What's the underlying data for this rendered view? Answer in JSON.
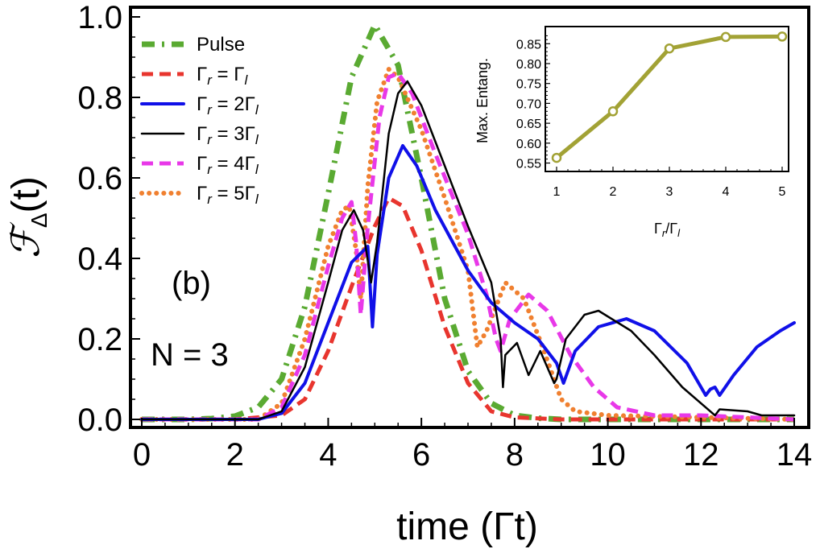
{
  "chart_data": [
    {
      "type": "line",
      "panel_label": "(b)",
      "annotation": "N = 3",
      "xlabel": "time (Γt)",
      "ylabel_symbol": "ℱ",
      "ylabel_sub": "Δ",
      "ylabel_arg": "(t)",
      "xlim": [
        0,
        14
      ],
      "ylim": [
        0,
        1.0
      ],
      "x_ticks": [
        "0",
        "2",
        "4",
        "6",
        "8",
        "10",
        "12",
        "14"
      ],
      "y_ticks": [
        "0.0",
        "0.2",
        "0.4",
        "0.6",
        "0.8",
        "1.0"
      ],
      "legend_position": "top-left",
      "series": [
        {
          "name": "Pulse",
          "key": "pulse",
          "color": "#5aaa32",
          "style": "dashdot",
          "legend": {
            "main": "Pulse",
            "num": ""
          },
          "points": [
            [
              0,
              0
            ],
            [
              1,
              0
            ],
            [
              1.5,
              0.002
            ],
            [
              2,
              0.008
            ],
            [
              2.5,
              0.03
            ],
            [
              3,
              0.1
            ],
            [
              3.5,
              0.28
            ],
            [
              4,
              0.56
            ],
            [
              4.5,
              0.85
            ],
            [
              5,
              0.98
            ],
            [
              5.5,
              0.88
            ],
            [
              6,
              0.6
            ],
            [
              6.5,
              0.3
            ],
            [
              7,
              0.12
            ],
            [
              7.5,
              0.04
            ],
            [
              8,
              0.01
            ],
            [
              8.5,
              0.003
            ],
            [
              9,
              0
            ],
            [
              14,
              0
            ]
          ]
        },
        {
          "name": "Γr = Γl",
          "key": "r1",
          "color": "#e8352e",
          "style": "dashed",
          "legend": {
            "main": "Γ",
            "num": ""
          },
          "points": [
            [
              0,
              0
            ],
            [
              2,
              0
            ],
            [
              3,
              0.01
            ],
            [
              3.5,
              0.05
            ],
            [
              4,
              0.17
            ],
            [
              4.5,
              0.33
            ],
            [
              5,
              0.48
            ],
            [
              5.3,
              0.55
            ],
            [
              5.6,
              0.53
            ],
            [
              6,
              0.42
            ],
            [
              6.5,
              0.23
            ],
            [
              7,
              0.09
            ],
            [
              7.5,
              0.02
            ],
            [
              8,
              0.005
            ],
            [
              9,
              0
            ],
            [
              14,
              0
            ]
          ]
        },
        {
          "name": "Γr = 2Γl",
          "key": "r2",
          "color": "#1010e8",
          "style": "solid-thick",
          "legend": {
            "main": "Γ",
            "num": "2"
          },
          "points": [
            [
              0,
              0
            ],
            [
              2.5,
              0
            ],
            [
              3,
              0.015
            ],
            [
              3.5,
              0.09
            ],
            [
              4,
              0.24
            ],
            [
              4.5,
              0.39
            ],
            [
              4.85,
              0.43
            ],
            [
              4.95,
              0.23
            ],
            [
              5.05,
              0.41
            ],
            [
              5.3,
              0.6
            ],
            [
              5.6,
              0.68
            ],
            [
              5.9,
              0.63
            ],
            [
              6.3,
              0.52
            ],
            [
              7,
              0.37
            ],
            [
              7.5,
              0.29
            ],
            [
              8,
              0.24
            ],
            [
              8.5,
              0.2
            ],
            [
              8.9,
              0.14
            ],
            [
              9.05,
              0.09
            ],
            [
              9.3,
              0.17
            ],
            [
              9.8,
              0.23
            ],
            [
              10.4,
              0.25
            ],
            [
              11,
              0.22
            ],
            [
              11.7,
              0.14
            ],
            [
              12.1,
              0.06
            ],
            [
              12.2,
              0.075
            ],
            [
              12.3,
              0.08
            ],
            [
              12.4,
              0.06
            ],
            [
              12.7,
              0.11
            ],
            [
              13.2,
              0.18
            ],
            [
              13.7,
              0.22
            ],
            [
              14,
              0.24
            ]
          ]
        },
        {
          "name": "Γr = 3Γl",
          "key": "r3",
          "color": "#000000",
          "style": "solid",
          "legend": {
            "main": "Γ",
            "num": "3"
          },
          "points": [
            [
              0,
              0
            ],
            [
              2.5,
              0
            ],
            [
              3,
              0.02
            ],
            [
              3.5,
              0.13
            ],
            [
              4,
              0.34
            ],
            [
              4.3,
              0.47
            ],
            [
              4.55,
              0.52
            ],
            [
              4.75,
              0.47
            ],
            [
              4.92,
              0.34
            ],
            [
              5.05,
              0.44
            ],
            [
              5.3,
              0.71
            ],
            [
              5.5,
              0.81
            ],
            [
              5.7,
              0.84
            ],
            [
              6,
              0.78
            ],
            [
              6.5,
              0.63
            ],
            [
              7,
              0.48
            ],
            [
              7.5,
              0.34
            ],
            [
              7.7,
              0.2
            ],
            [
              7.75,
              0.08
            ],
            [
              7.8,
              0.16
            ],
            [
              8.05,
              0.19
            ],
            [
              8.3,
              0.11
            ],
            [
              8.55,
              0.17
            ],
            [
              8.85,
              0.09
            ],
            [
              8.9,
              0.1
            ],
            [
              9.1,
              0.2
            ],
            [
              9.5,
              0.26
            ],
            [
              9.8,
              0.27
            ],
            [
              10.5,
              0.22
            ],
            [
              11,
              0.16
            ],
            [
              11.6,
              0.08
            ],
            [
              12.3,
              0.01
            ],
            [
              12.4,
              0.025
            ],
            [
              13,
              0.02
            ],
            [
              13.3,
              0.01
            ],
            [
              13.6,
              0.01
            ],
            [
              14,
              0.01
            ]
          ]
        },
        {
          "name": "Γr = 4Γl",
          "key": "r4",
          "color": "#e838e8",
          "style": "dashed",
          "legend": {
            "main": "Γ",
            "num": "4"
          },
          "points": [
            [
              0,
              0
            ],
            [
              2.5,
              0
            ],
            [
              3,
              0.03
            ],
            [
              3.5,
              0.16
            ],
            [
              4,
              0.38
            ],
            [
              4.3,
              0.5
            ],
            [
              4.5,
              0.54
            ],
            [
              4.6,
              0.44
            ],
            [
              4.7,
              0.26
            ],
            [
              4.85,
              0.48
            ],
            [
              5.1,
              0.75
            ],
            [
              5.3,
              0.85
            ],
            [
              5.5,
              0.86
            ],
            [
              5.8,
              0.81
            ],
            [
              6.3,
              0.66
            ],
            [
              7,
              0.46
            ],
            [
              7.4,
              0.31
            ],
            [
              7.6,
              0.2
            ],
            [
              7.7,
              0.17
            ],
            [
              7.9,
              0.25
            ],
            [
              8.3,
              0.31
            ],
            [
              8.7,
              0.27
            ],
            [
              9.2,
              0.16
            ],
            [
              9.7,
              0.08
            ],
            [
              10.2,
              0.03
            ],
            [
              11,
              0.01
            ],
            [
              12,
              0.01
            ],
            [
              14,
              0
            ]
          ]
        },
        {
          "name": "Γr = 5Γl",
          "key": "r5",
          "color": "#f08030",
          "style": "dotted",
          "legend": {
            "main": "Γ",
            "num": "5"
          },
          "points": [
            [
              0,
              0
            ],
            [
              2.5,
              0
            ],
            [
              3,
              0.04
            ],
            [
              3.5,
              0.2
            ],
            [
              4,
              0.43
            ],
            [
              4.3,
              0.52
            ],
            [
              4.45,
              0.53
            ],
            [
              4.6,
              0.42
            ],
            [
              4.7,
              0.3
            ],
            [
              4.85,
              0.58
            ],
            [
              5.05,
              0.79
            ],
            [
              5.3,
              0.87
            ],
            [
              5.5,
              0.85
            ],
            [
              6,
              0.72
            ],
            [
              6.5,
              0.55
            ],
            [
              7,
              0.37
            ],
            [
              7.2,
              0.18
            ],
            [
              7.4,
              0.22
            ],
            [
              7.8,
              0.34
            ],
            [
              8.2,
              0.3
            ],
            [
              8.6,
              0.18
            ],
            [
              9,
              0.05
            ],
            [
              9.3,
              0.02
            ],
            [
              10,
              0.01
            ],
            [
              14,
              0
            ]
          ]
        }
      ]
    },
    {
      "type": "line",
      "inset": true,
      "xlabel": "Γr/Γl",
      "ylabel": "Max. Entang.",
      "xlim": [
        1,
        5
      ],
      "ylim": [
        0.545,
        0.885
      ],
      "x_ticks": [
        "1",
        "2",
        "3",
        "4",
        "5"
      ],
      "y_ticks": [
        "0.55",
        "0.60",
        "0.65",
        "0.70",
        "0.75",
        "0.80",
        "0.85"
      ],
      "color": "#a2a235",
      "x": [
        1,
        2,
        3,
        4,
        5
      ],
      "values": [
        0.563,
        0.68,
        0.838,
        0.867,
        0.868
      ]
    }
  ]
}
